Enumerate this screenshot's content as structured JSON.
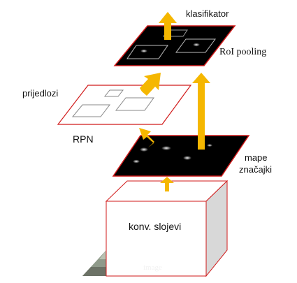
{
  "labels": {
    "classifier": "klasifikator",
    "roi_pooling": "RoI pooling",
    "proposals": "prijedlozi",
    "rpn": "RPN",
    "feature_maps_line1": "mape",
    "feature_maps_line2": "značajki",
    "conv_layers": "konv. slojevi",
    "image": "image"
  },
  "colors": {
    "arrow": "#f5b700",
    "plane_border": "#d11a1a",
    "feature_map_fill": "#000000",
    "box_side": "#d8d8d8"
  }
}
